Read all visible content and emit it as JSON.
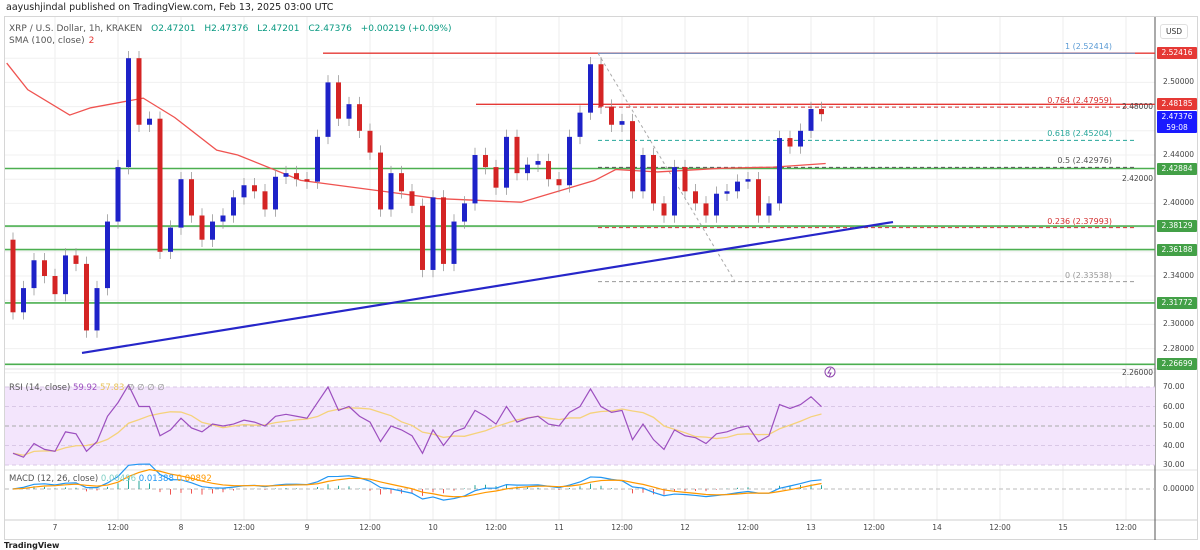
{
  "header": {
    "published": "aayushjindal published on TradingView.com, Feb 13, 2025 03:00 UTC"
  },
  "legend": {
    "symbol": "XRP / U.S. Dollar, 1h, KRAKEN",
    "open": "O2.47201",
    "high": "H2.47376",
    "low": "L2.47201",
    "close": "C2.47376",
    "change": "+0.00219 (+0.09%)",
    "sma_label": "SMA (100, close)",
    "sma_value": "2"
  },
  "rsi_legend": {
    "label": "RSI (14, close)",
    "value": "59.92",
    "ma_value": "57.83",
    "extra": "∅ ∅ ∅ ∅"
  },
  "macd_legend": {
    "label": "MACD (12, 26, close)",
    "hist": "0.00496",
    "macd": "0.01388",
    "signal": "0.00892"
  },
  "currency": "USD",
  "footer": {
    "logo": "TradingView"
  },
  "colors": {
    "up": "#1e22c8",
    "down": "#d42424",
    "sma": "#ef5350",
    "support": "#4caf50",
    "resistance": "#e53935",
    "trendline": "#2626c9",
    "rsi": "#9c4fbf",
    "rsi_ma": "#f5d27a",
    "rsi_band": "#f3e5fc",
    "macd": "#2196f3",
    "signal": "#ff9800",
    "last_price": "#1a1aff"
  },
  "chart_data": {
    "type": "candlestick",
    "title": "XRP / U.S. Dollar, 1h, KRAKEN",
    "bar_interval_note": "",
    "first_open": 2.37,
    "closes": [
      2.31,
      2.33,
      2.353,
      2.34,
      2.325,
      2.357,
      2.35,
      2.295,
      2.33,
      2.385,
      2.43,
      2.52,
      2.465,
      2.47,
      2.36,
      2.38,
      2.42,
      2.39,
      2.37,
      2.385,
      2.39,
      2.405,
      2.415,
      2.41,
      2.395,
      2.422,
      2.425,
      2.42,
      2.418,
      2.455,
      2.5,
      2.47,
      2.482,
      2.46,
      2.442,
      2.395,
      2.425,
      2.41,
      2.398,
      2.345,
      2.405,
      2.35,
      2.385,
      2.4,
      2.44,
      2.43,
      2.413,
      2.455,
      2.425,
      2.432,
      2.435,
      2.42,
      2.415,
      2.455,
      2.475,
      2.515,
      2.48,
      2.465,
      2.468,
      2.41,
      2.44,
      2.4,
      2.39,
      2.43,
      2.41,
      2.4,
      2.39,
      2.408,
      2.41,
      2.418,
      2.42,
      2.39,
      2.4,
      2.454,
      2.447,
      2.46,
      2.478,
      2.47376
    ],
    "sma100": [
      [
        0,
        2.516
      ],
      [
        2,
        2.494
      ],
      [
        6,
        2.473
      ],
      [
        8,
        2.479
      ],
      [
        13,
        2.487
      ],
      [
        16,
        2.471
      ],
      [
        20,
        2.444
      ],
      [
        22,
        2.44
      ],
      [
        28,
        2.419
      ],
      [
        35,
        2.411
      ],
      [
        41,
        2.404
      ],
      [
        49,
        2.401
      ],
      [
        56,
        2.419
      ],
      [
        58,
        2.428
      ],
      [
        62,
        2.426
      ],
      [
        68,
        2.429
      ],
      [
        73,
        2.43
      ],
      [
        78,
        2.433
      ]
    ],
    "rsi": [
      36,
      34,
      41,
      38,
      37,
      47,
      46,
      37,
      42,
      55,
      62,
      71,
      60,
      60,
      45,
      48,
      54,
      49,
      47,
      51,
      50,
      51,
      53,
      52,
      50,
      55,
      56,
      55,
      54,
      62,
      70,
      58,
      60,
      55,
      52,
      42,
      50,
      48,
      45,
      36,
      48,
      40,
      47,
      49,
      58,
      55,
      51,
      60,
      52,
      54,
      55,
      51,
      50,
      57,
      60,
      69,
      60,
      57,
      58,
      43,
      51,
      43,
      38,
      48,
      45,
      44,
      41,
      46,
      47,
      49,
      50,
      42,
      45,
      61,
      59,
      61,
      65,
      59.92
    ],
    "y_ticks": [
      "2.50000",
      "2.48000",
      "2.44000",
      "2.42000",
      "2.40000",
      "2.34000",
      "2.30000",
      "2.28000",
      "2.26000"
    ],
    "rsi_ticks": [
      "70.00",
      "60.00",
      "50.00",
      "40.00",
      "30.00"
    ],
    "macd_ticks": [
      "0.00000"
    ],
    "x_ticks": [
      "7",
      "12:00",
      "8",
      "12:00",
      "9",
      "12:00",
      "10",
      "12:00",
      "11",
      "12:00",
      "12",
      "12:00",
      "13",
      "12:00",
      "14",
      "12:00",
      "15",
      "12:00"
    ],
    "support_levels": [
      2.42884,
      2.38129,
      2.36188,
      2.31772,
      2.26699
    ],
    "resistance_levels": [
      2.52416,
      2.48185
    ],
    "price_tags": [
      {
        "value": "2.52416",
        "kind": "resistance"
      },
      {
        "value": "2.48185",
        "kind": "resistance"
      },
      {
        "value": "2.47376",
        "sub": "59:08",
        "kind": "last"
      },
      {
        "value": "2.42884",
        "kind": "support"
      },
      {
        "value": "2.38129",
        "kind": "support"
      },
      {
        "value": "2.36188",
        "kind": "support"
      },
      {
        "value": "2.31772",
        "kind": "support"
      },
      {
        "value": "2.26699",
        "kind": "support"
      }
    ],
    "fib_levels": [
      {
        "label": "1 (2.52414)",
        "price": 2.52414,
        "color": "#5b9bd5"
      },
      {
        "label": "0.764 (2.47959)",
        "price": 2.47959,
        "color": "#d32f2f"
      },
      {
        "label": "0.618 (2.45204)",
        "price": 2.45204,
        "color": "#26a69a"
      },
      {
        "label": "0.5 (2.42976)",
        "price": 2.42976,
        "color": "#555555"
      },
      {
        "label": "0.236 (2.37993)",
        "price": 2.37993,
        "color": "#d32f2f"
      },
      {
        "label": "0 (2.33538)",
        "price": 2.33538,
        "color": "#999999"
      }
    ],
    "trendline": {
      "from_price": 2.2764,
      "to_price": 2.3846
    }
  }
}
